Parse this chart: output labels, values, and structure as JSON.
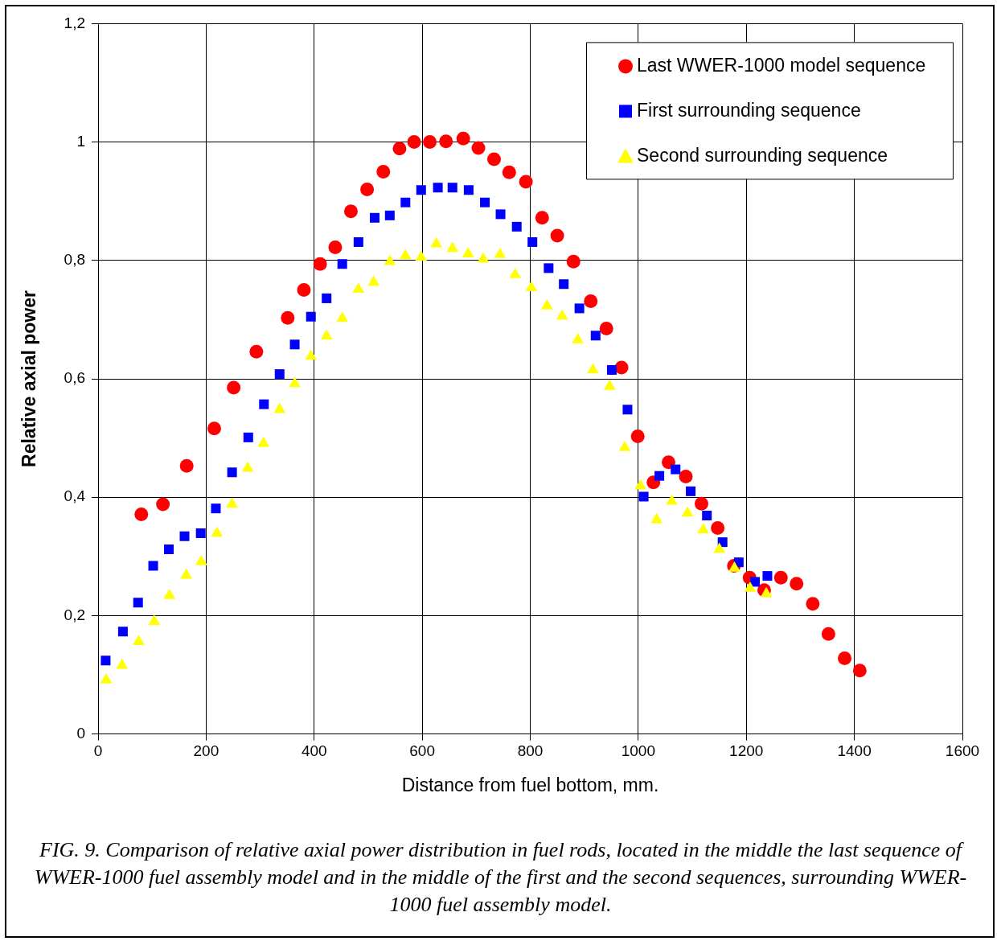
{
  "chart_data": {
    "type": "scatter",
    "xlabel": "Distance from fuel bottom, mm.",
    "ylabel": "Relative axial power",
    "xlim": [
      0,
      1600
    ],
    "xticks": [
      0,
      200,
      400,
      600,
      800,
      1000,
      1200,
      1400,
      1600
    ],
    "ylim": [
      0,
      1.2
    ],
    "yticks": [
      0,
      {
        "value": 0.2,
        "label": "0,2"
      },
      {
        "value": 0.4,
        "label": "0,4"
      },
      {
        "value": 0.6,
        "label": "0,6"
      },
      {
        "value": 0.8,
        "label": "0,8"
      },
      1,
      {
        "value": 1.2,
        "label": "1,2"
      }
    ],
    "grid": true,
    "legend": "top right",
    "annotations": [
      "FIG. 9. Comparison of relative axial power distribution in fuel rods, located in the middle the last sequence of WWER-1000 fuel assembly model and in the middle of the first and the second sequences, surrounding WWER-1000 fuel assembly model."
    ],
    "series": [
      {
        "name": "Last WWER-1000 model sequence",
        "color": "#ff0000",
        "marker": "circle",
        "x": [
          80,
          120,
          164,
          215,
          251,
          293,
          351,
          381,
          411,
          439,
          468,
          498,
          528,
          558,
          585,
          614,
          644,
          676,
          704,
          733,
          761,
          792,
          822,
          850,
          880,
          912,
          941,
          969,
          999,
          1028,
          1056,
          1088,
          1117,
          1147,
          1177,
          1206,
          1233,
          1264,
          1293,
          1323,
          1352,
          1382,
          1410
        ],
        "values": [
          0.371,
          0.388,
          0.453,
          0.516,
          0.585,
          0.646,
          0.703,
          0.75,
          0.794,
          0.822,
          0.883,
          0.92,
          0.95,
          0.989,
          1.0,
          1.0,
          1.001,
          1.006,
          0.99,
          0.971,
          0.949,
          0.933,
          0.872,
          0.842,
          0.798,
          0.731,
          0.685,
          0.619,
          0.503,
          0.425,
          0.459,
          0.435,
          0.389,
          0.348,
          0.284,
          0.264,
          0.243,
          0.264,
          0.254,
          0.22,
          0.169,
          0.128,
          0.107
        ]
      },
      {
        "name": "First surrounding sequence",
        "color": "#0000ff",
        "marker": "square",
        "x": [
          14,
          46,
          74,
          102,
          131,
          160,
          190,
          218,
          248,
          278,
          307,
          336,
          364,
          394,
          423,
          452,
          482,
          512,
          540,
          569,
          598,
          629,
          656,
          686,
          716,
          745,
          775,
          804,
          834,
          862,
          891,
          921,
          951,
          980,
          1010,
          1039,
          1069,
          1097,
          1127,
          1156,
          1186,
          1216,
          1239
        ],
        "values": [
          0.124,
          0.173,
          0.222,
          0.284,
          0.312,
          0.334,
          0.339,
          0.381,
          0.442,
          0.501,
          0.557,
          0.608,
          0.658,
          0.705,
          0.736,
          0.794,
          0.831,
          0.872,
          0.876,
          0.898,
          0.919,
          0.923,
          0.923,
          0.919,
          0.898,
          0.878,
          0.857,
          0.831,
          0.787,
          0.76,
          0.719,
          0.673,
          0.615,
          0.548,
          0.401,
          0.436,
          0.447,
          0.41,
          0.369,
          0.324,
          0.29,
          0.257,
          0.267
        ]
      },
      {
        "name": "Second surrounding sequence",
        "color": "#ffff00",
        "marker": "triangle",
        "x": [
          15,
          44,
          75,
          104,
          132,
          163,
          191,
          220,
          248,
          277,
          306,
          336,
          364,
          394,
          423,
          452,
          482,
          510,
          540,
          569,
          598,
          626,
          656,
          685,
          713,
          744,
          772,
          802,
          831,
          859,
          888,
          916,
          947,
          975,
          1004,
          1034,
          1062,
          1091,
          1120,
          1150,
          1178,
          1207,
          1237
        ],
        "values": [
          0.091,
          0.116,
          0.156,
          0.19,
          0.234,
          0.268,
          0.291,
          0.339,
          0.388,
          0.449,
          0.491,
          0.548,
          0.592,
          0.638,
          0.672,
          0.702,
          0.751,
          0.763,
          0.798,
          0.808,
          0.805,
          0.828,
          0.82,
          0.811,
          0.802,
          0.81,
          0.776,
          0.754,
          0.723,
          0.706,
          0.666,
          0.615,
          0.587,
          0.484,
          0.419,
          0.362,
          0.393,
          0.373,
          0.345,
          0.312,
          0.28,
          0.246,
          0.237
        ]
      }
    ]
  }
}
